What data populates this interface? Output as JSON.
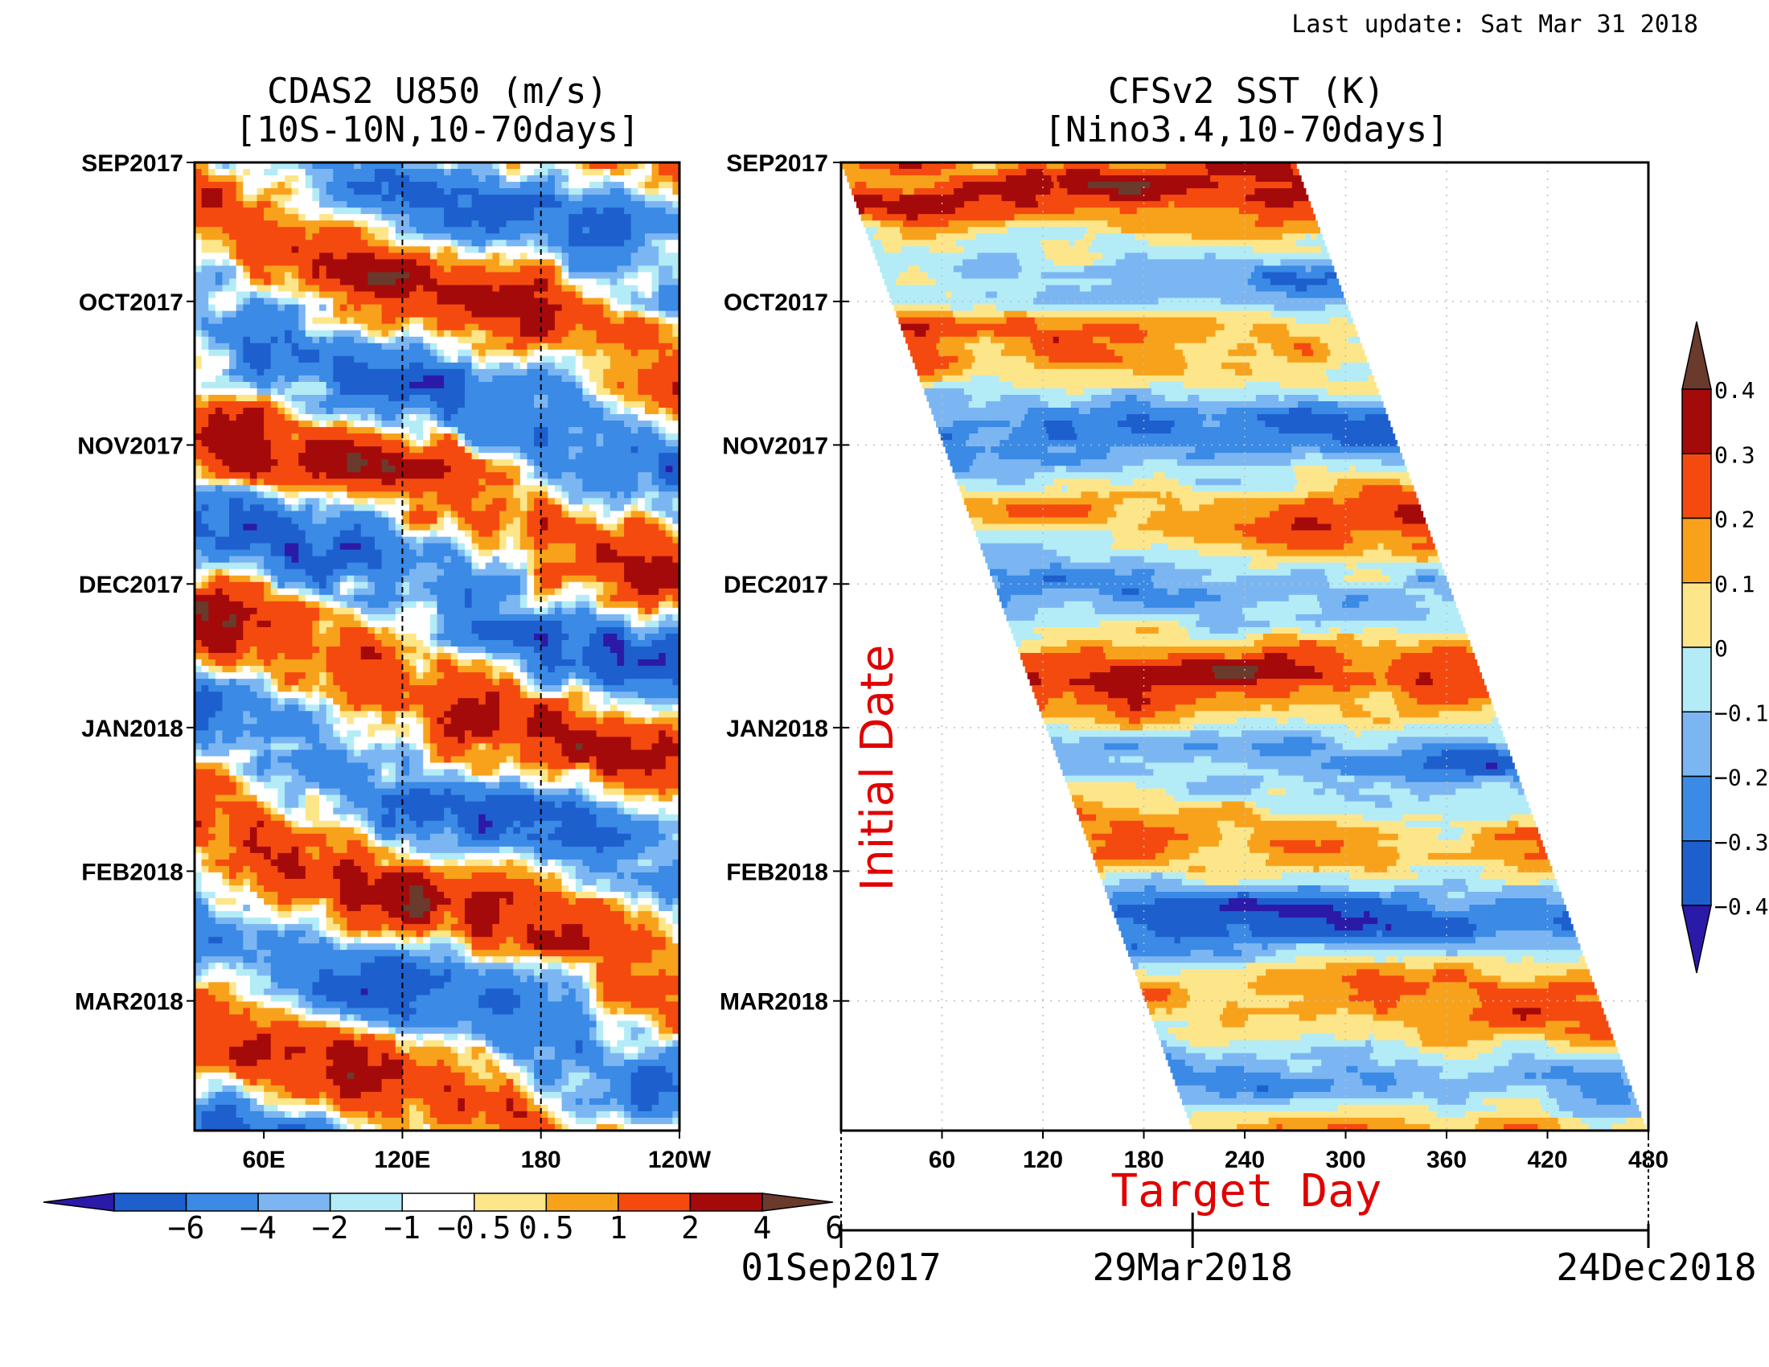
{
  "last_update": "Last update: Sat Mar 31 2018",
  "chart_data": [
    {
      "type": "heatmap",
      "title": "CDAS2 U850 (m/s)",
      "subtitle": "[10S-10N,10-70days]",
      "xlabel": "",
      "ylabel": "",
      "x_tick_labels": [
        "60E",
        "120E",
        "180",
        "120W"
      ],
      "x_ticks_deg": [
        60,
        120,
        180,
        240
      ],
      "xlim_deg": [
        30,
        240
      ],
      "reference_lines_deg": [
        120,
        180
      ],
      "y_tick_labels": [
        "SEP2017",
        "OCT2017",
        "NOV2017",
        "DEC2017",
        "JAN2018",
        "FEB2018",
        "MAR2018"
      ],
      "y_range": [
        "2017-09-01",
        "2018-03-29"
      ],
      "colorbar": {
        "levels": [
          "-6",
          "-4",
          "-2",
          "-1",
          "-0.5",
          "0.5",
          "1",
          "2",
          "4",
          "6"
        ],
        "colors": [
          "#2b1aa8",
          "#1e5fce",
          "#3a8ae6",
          "#7cb6f2",
          "#b3ecf7",
          "#ffffff",
          "#fde68a",
          "#f8a21c",
          "#f54a0f",
          "#a50a0a",
          "#6a3a2c"
        ]
      }
    },
    {
      "type": "heatmap",
      "title": "CFSv2 SST (K)",
      "subtitle": "[Nino3.4,10-70days]",
      "xlabel": "Target Day",
      "ylabel": "Initial Date",
      "x_ticks": [
        60,
        120,
        180,
        240,
        300,
        360,
        420,
        480
      ],
      "xlim": [
        0,
        480
      ],
      "y_tick_labels": [
        "SEP2017",
        "OCT2017",
        "NOV2017",
        "DEC2017",
        "JAN2018",
        "FEB2018",
        "MAR2018"
      ],
      "y_range": [
        "2017-09-01",
        "2018-03-29"
      ],
      "forecast_window_days": [
        0,
        270
      ],
      "date_axis": {
        "start": "01Sep2017",
        "middle": "29Mar2018",
        "end": "24Dec2018"
      },
      "colorbar": {
        "levels": [
          "-0.4",
          "-0.3",
          "-0.2",
          "-0.1",
          "0",
          "0.1",
          "0.2",
          "0.3",
          "0.4"
        ],
        "colors": [
          "#2b1aa8",
          "#1e5fce",
          "#3a8ae6",
          "#7cb6f2",
          "#b3ecf7",
          "#fde68a",
          "#f8a21c",
          "#f54a0f",
          "#a50a0a",
          "#6a3a2c"
        ]
      }
    }
  ]
}
